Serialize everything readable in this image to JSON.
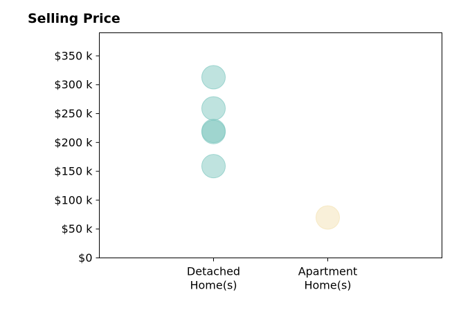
{
  "chart_data": {
    "type": "scatter",
    "title": "Selling Price",
    "categories": [
      "Detached\nHome(s)",
      "Apartment\nHome(s)"
    ],
    "y_ticks": [
      0,
      50,
      100,
      150,
      200,
      250,
      300,
      350
    ],
    "y_tick_labels": [
      "$0",
      "$50 k",
      "$100 k",
      "$150 k",
      "$200 k",
      "$250 k",
      "$300 k",
      "$350 k"
    ],
    "ylim": [
      0,
      390
    ],
    "xlim": [
      0,
      3
    ],
    "grid": false,
    "series": [
      {
        "category_index": 1,
        "color": "#7fc8c0",
        "values": [
          313,
          259,
          220,
          218,
          159
        ]
      },
      {
        "category_index": 2,
        "color": "#f3e2b4",
        "values": [
          70
        ]
      }
    ]
  }
}
